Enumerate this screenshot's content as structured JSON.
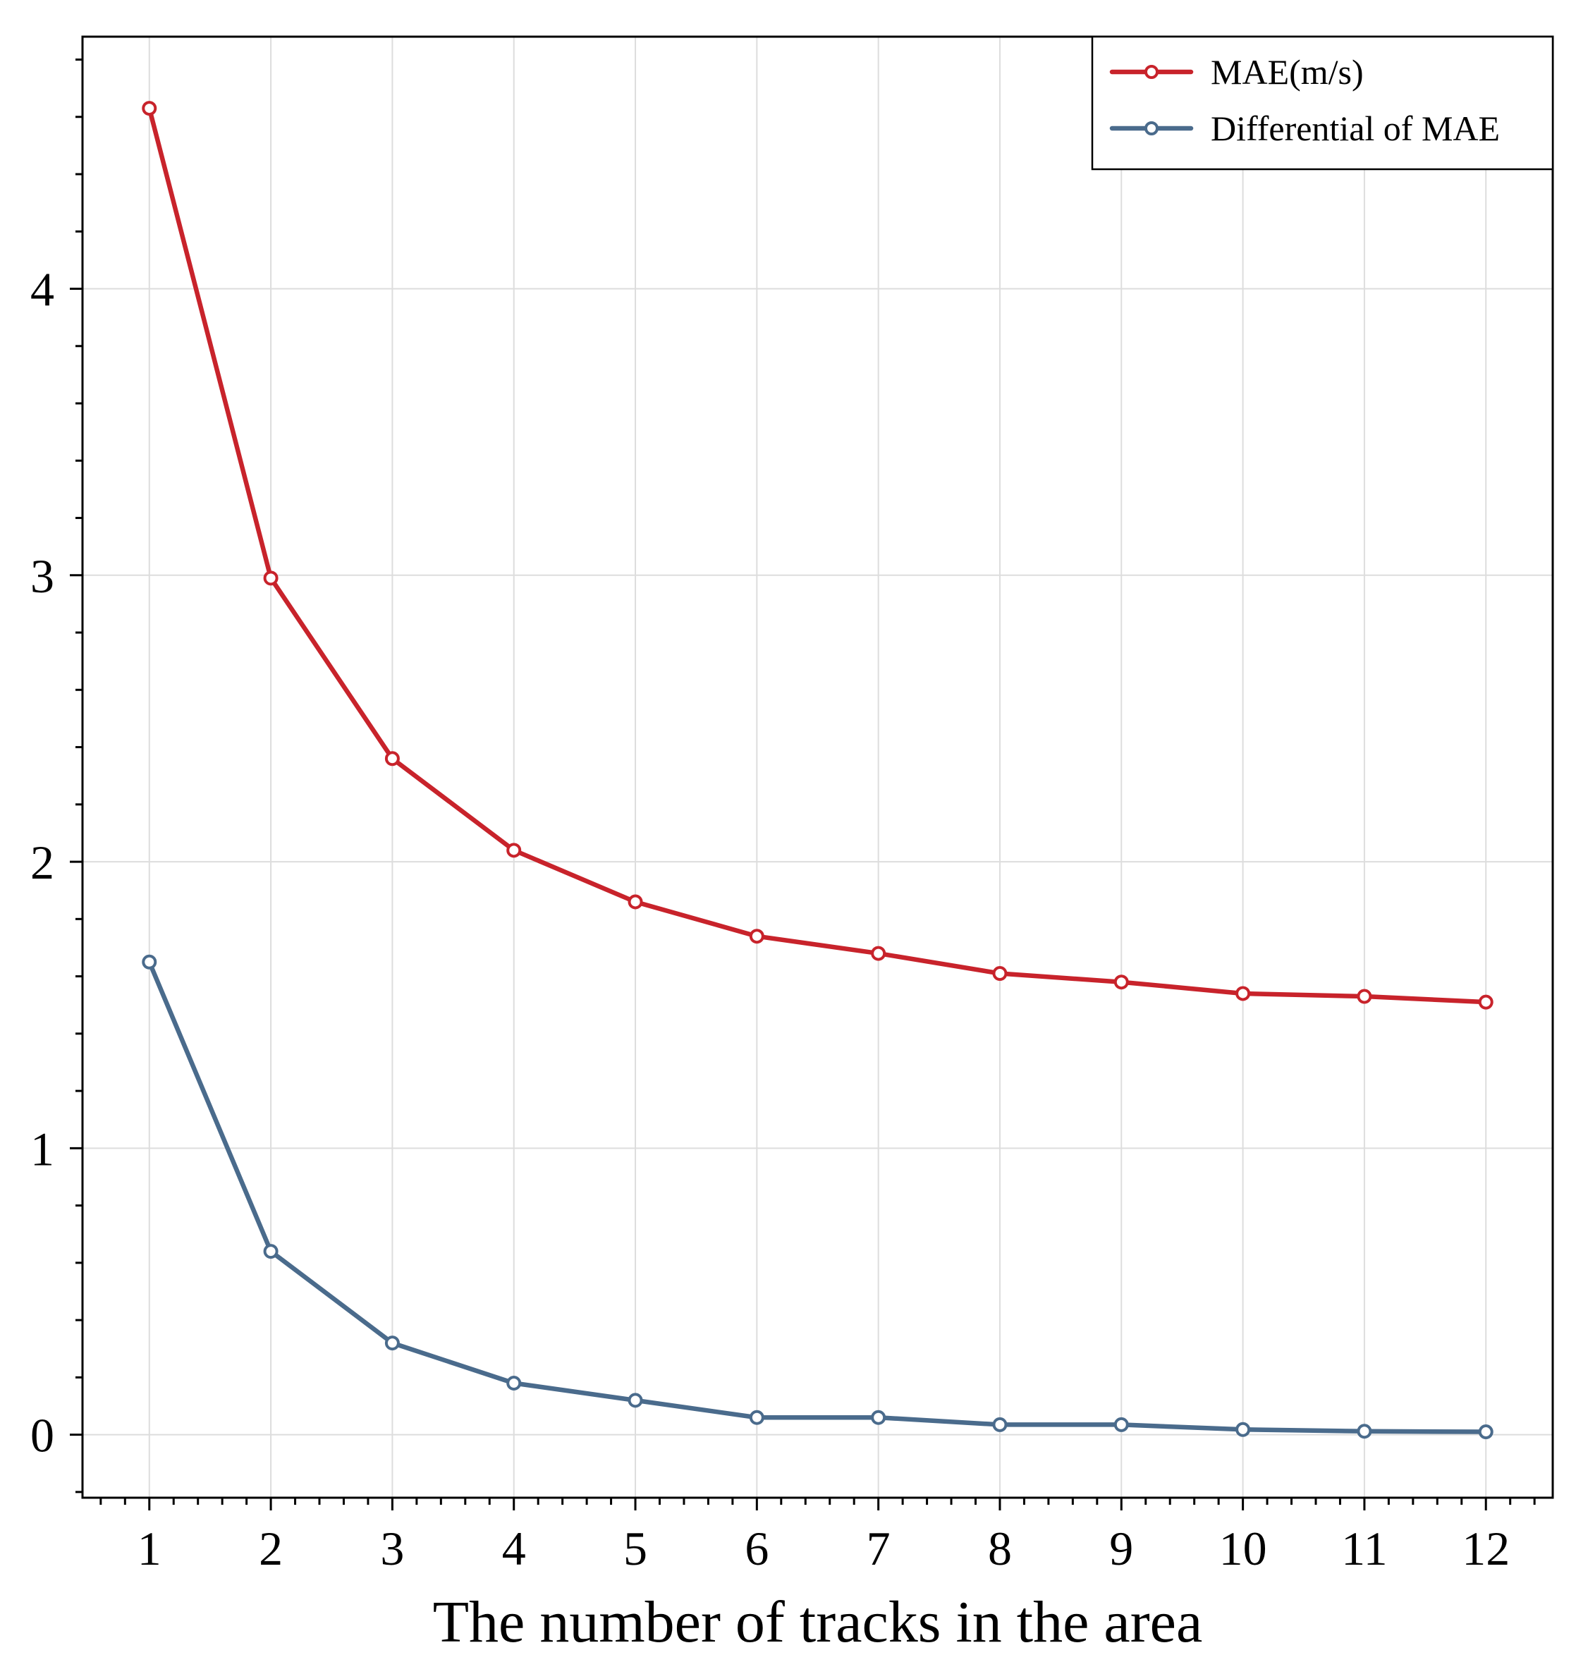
{
  "chart_data": {
    "type": "line",
    "title": "",
    "xlabel": "The number of tracks in the area",
    "ylabel": "",
    "x": [
      1,
      2,
      3,
      4,
      5,
      6,
      7,
      8,
      9,
      10,
      11,
      12
    ],
    "xticks": [
      "1",
      "2",
      "3",
      "4",
      "5",
      "6",
      "7",
      "8",
      "9",
      "10",
      "11",
      "12"
    ],
    "xlim": [
      0.45,
      12.55
    ],
    "yticks": [
      "0",
      "1",
      "2",
      "3",
      "4"
    ],
    "ylim": [
      -0.22,
      4.88
    ],
    "grid": true,
    "legend_position": "top-right",
    "series": [
      {
        "name": "MAE(m/s)",
        "color": "#c8232b",
        "values": [
          4.63,
          2.99,
          2.36,
          2.04,
          1.86,
          1.74,
          1.68,
          1.61,
          1.58,
          1.54,
          1.53,
          1.51
        ]
      },
      {
        "name": "Differential of MAE",
        "color": "#4a6b8c",
        "values": [
          1.65,
          0.64,
          0.32,
          0.18,
          0.12,
          0.06,
          0.06,
          0.035,
          0.035,
          0.018,
          0.012,
          0.01
        ]
      }
    ]
  }
}
